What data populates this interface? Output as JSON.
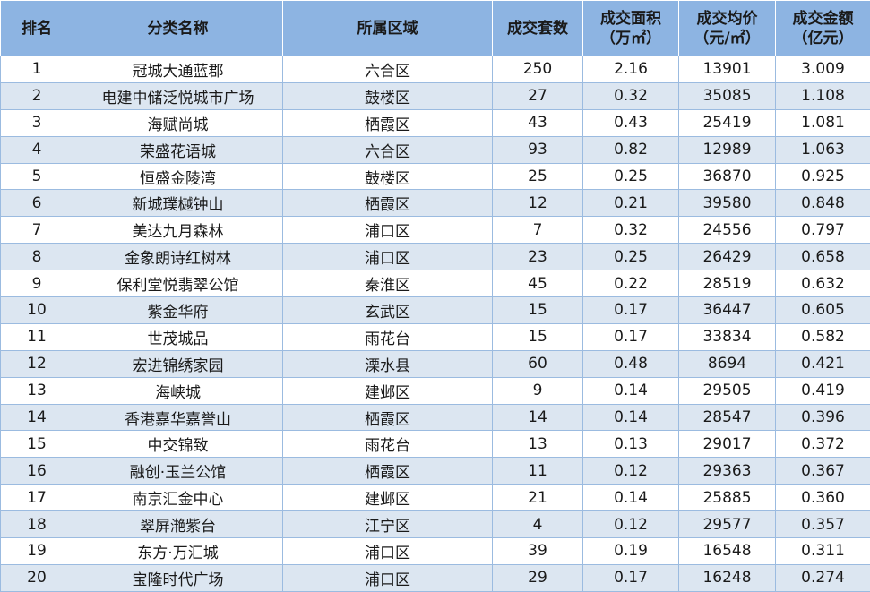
{
  "table": {
    "headers": {
      "rank": "排名",
      "name": "分类名称",
      "district": "所属区域",
      "units": "成交套数",
      "area_l1": "成交面积",
      "area_l2": "（万㎡）",
      "price_l1": "成交均价",
      "price_l2": "（元/㎡）",
      "amount_l1": "成交金额",
      "amount_l2": "（亿元）"
    },
    "rows": [
      {
        "rank": "1",
        "name": "冠城大通蓝郡",
        "district": "六合区",
        "units": "250",
        "area": "2.16",
        "price": "13901",
        "amount": "3.009"
      },
      {
        "rank": "2",
        "name": "电建中储泛悦城市广场",
        "district": "鼓楼区",
        "units": "27",
        "area": "0.32",
        "price": "35085",
        "amount": "1.108"
      },
      {
        "rank": "3",
        "name": "海赋尚城",
        "district": "栖霞区",
        "units": "43",
        "area": "0.43",
        "price": "25419",
        "amount": "1.081"
      },
      {
        "rank": "4",
        "name": "荣盛花语城",
        "district": "六合区",
        "units": "93",
        "area": "0.82",
        "price": "12989",
        "amount": "1.063"
      },
      {
        "rank": "5",
        "name": "恒盛金陵湾",
        "district": "鼓楼区",
        "units": "25",
        "area": "0.25",
        "price": "36870",
        "amount": "0.925"
      },
      {
        "rank": "6",
        "name": "新城璞樾钟山",
        "district": "栖霞区",
        "units": "12",
        "area": "0.21",
        "price": "39580",
        "amount": "0.848"
      },
      {
        "rank": "7",
        "name": "美达九月森林",
        "district": "浦口区",
        "units": "7",
        "area": "0.32",
        "price": "24556",
        "amount": "0.797"
      },
      {
        "rank": "8",
        "name": "金象朗诗红树林",
        "district": "浦口区",
        "units": "23",
        "area": "0.25",
        "price": "26429",
        "amount": "0.658"
      },
      {
        "rank": "9",
        "name": "保利堂悦翡翠公馆",
        "district": "秦淮区",
        "units": "45",
        "area": "0.22",
        "price": "28519",
        "amount": "0.632"
      },
      {
        "rank": "10",
        "name": "紫金华府",
        "district": "玄武区",
        "units": "15",
        "area": "0.17",
        "price": "36447",
        "amount": "0.605"
      },
      {
        "rank": "11",
        "name": "世茂城品",
        "district": "雨花台",
        "units": "15",
        "area": "0.17",
        "price": "33834",
        "amount": "0.582"
      },
      {
        "rank": "12",
        "name": "宏进锦绣家园",
        "district": "溧水县",
        "units": "60",
        "area": "0.48",
        "price": "8694",
        "amount": "0.421"
      },
      {
        "rank": "13",
        "name": "海峡城",
        "district": "建邺区",
        "units": "9",
        "area": "0.14",
        "price": "29505",
        "amount": "0.419"
      },
      {
        "rank": "14",
        "name": "香港嘉华嘉誉山",
        "district": "栖霞区",
        "units": "14",
        "area": "0.14",
        "price": "28547",
        "amount": "0.396"
      },
      {
        "rank": "15",
        "name": "中交锦致",
        "district": "雨花台",
        "units": "13",
        "area": "0.13",
        "price": "29017",
        "amount": "0.372"
      },
      {
        "rank": "16",
        "name": "融创·玉兰公馆",
        "district": "栖霞区",
        "units": "11",
        "area": "0.12",
        "price": "29363",
        "amount": "0.367"
      },
      {
        "rank": "17",
        "name": "南京汇金中心",
        "district": "建邺区",
        "units": "21",
        "area": "0.14",
        "price": "25885",
        "amount": "0.360"
      },
      {
        "rank": "18",
        "name": "翠屏滟紫台",
        "district": "江宁区",
        "units": "4",
        "area": "0.12",
        "price": "29577",
        "amount": "0.357"
      },
      {
        "rank": "19",
        "name": "东方·万汇城",
        "district": "浦口区",
        "units": "39",
        "area": "0.19",
        "price": "16548",
        "amount": "0.311"
      },
      {
        "rank": "20",
        "name": "宝隆时代广场",
        "district": "浦口区",
        "units": "29",
        "area": "0.17",
        "price": "16248",
        "amount": "0.274"
      }
    ]
  }
}
